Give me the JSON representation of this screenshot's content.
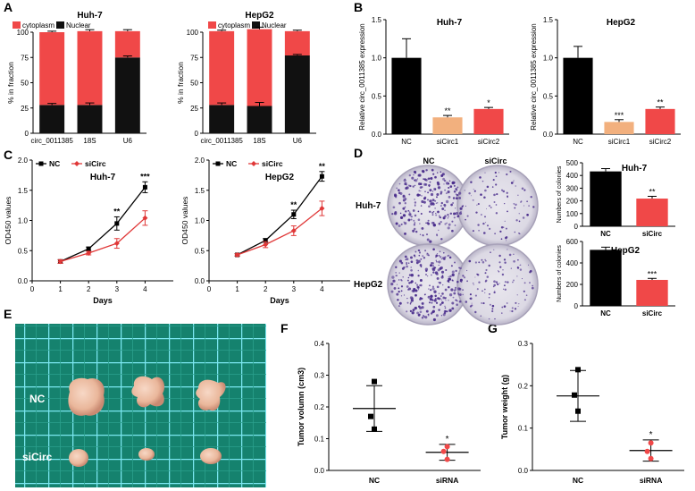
{
  "panel_letters": [
    "A",
    "B",
    "C",
    "D",
    "E",
    "F",
    "G"
  ],
  "colors": {
    "cytoplasm": "#f04848",
    "nuclear": "#111111",
    "nc_bar": "#000000",
    "sicirc1_bar": "#f2b07e",
    "sicirc2_bar": "#f04848",
    "sicirc_line": "#e03838",
    "crystal_violet": "#4a2d8c",
    "grid_bg": "#15826e",
    "grid_line": "#7ae6f0",
    "tumor": "#f0c2a8",
    "point_red": "#f04848"
  },
  "photo_labels": {
    "D": {
      "col1": "NC",
      "col2": "siCirc",
      "row1": "Huh-7",
      "row2": "HepG2"
    },
    "E": {
      "row1": "NC",
      "row2": "siCirc"
    }
  },
  "chart_data": [
    {
      "id": "A1",
      "type": "stacked-bar",
      "title": "Huh-7",
      "ylabel": "% in fraction",
      "ylim": [
        0,
        100
      ],
      "yticks": [
        0,
        25,
        50,
        75,
        100
      ],
      "categories": [
        "circ_0011385",
        "18S",
        "U6"
      ],
      "legend": [
        "cytoplasm",
        "Nuclear"
      ],
      "series": [
        {
          "name": "Nuclear",
          "values": [
            28,
            28,
            75
          ],
          "errors": [
            1.5,
            2,
            1.5
          ]
        },
        {
          "name": "cytoplasm",
          "values": [
            72,
            73,
            26
          ],
          "errors": [
            1,
            1.5,
            1.5
          ]
        }
      ]
    },
    {
      "id": "A2",
      "type": "stacked-bar",
      "title": "HepG2",
      "ylabel": "% in fraction",
      "ylim": [
        0,
        100
      ],
      "yticks": [
        0,
        25,
        50,
        75,
        100
      ],
      "categories": [
        "circ_0011385",
        "18S",
        "U6"
      ],
      "legend": [
        "cytoplasm",
        "Nuclear"
      ],
      "series": [
        {
          "name": "Nuclear",
          "values": [
            28,
            27,
            77
          ],
          "errors": [
            2,
            3.5,
            1
          ]
        },
        {
          "name": "cytoplasm",
          "values": [
            73,
            76,
            24
          ],
          "errors": [
            1,
            2,
            1
          ]
        }
      ]
    },
    {
      "id": "B1",
      "type": "bar",
      "title": "Huh-7",
      "ylabel": "Relative circ_0011385 expression",
      "ylim": [
        0,
        1.5
      ],
      "yticks": [
        "0.0",
        "0.5",
        "1.0",
        "1.5"
      ],
      "categories": [
        "NC",
        "siCirc1",
        "siCirc2"
      ],
      "values": [
        1.0,
        0.22,
        0.33
      ],
      "errors": [
        0.25,
        0.025,
        0.02
      ],
      "significance": [
        "",
        "**",
        "*"
      ]
    },
    {
      "id": "B2",
      "type": "bar",
      "title": "HepG2",
      "ylabel": "Relative circ_0011385 expression",
      "ylim": [
        0,
        1.5
      ],
      "yticks": [
        "0.0",
        "0.5",
        "1.0",
        "1.5"
      ],
      "categories": [
        "NC",
        "siCirc1",
        "siCirc2"
      ],
      "values": [
        1.0,
        0.16,
        0.33
      ],
      "errors": [
        0.15,
        0.03,
        0.025
      ],
      "significance": [
        "",
        "***",
        "**"
      ]
    },
    {
      "id": "C1",
      "type": "line",
      "title": "Huh-7",
      "xlabel": "Days",
      "ylabel": "OD450 values",
      "xlim": [
        0,
        5
      ],
      "xticks": [
        0,
        1,
        2,
        3,
        4
      ],
      "ylim": [
        0,
        2.0
      ],
      "yticks": [
        "0.0",
        "0.5",
        "1.0",
        "1.5",
        "2.0"
      ],
      "x": [
        1,
        2,
        3,
        4
      ],
      "legend": [
        "NC",
        "siCirc"
      ],
      "series": [
        {
          "name": "NC",
          "values": [
            0.32,
            0.53,
            0.95,
            1.55
          ],
          "errors": [
            0.03,
            0.03,
            0.11,
            0.09
          ]
        },
        {
          "name": "siCirc",
          "values": [
            0.32,
            0.46,
            0.62,
            1.04
          ],
          "errors": [
            0.03,
            0.03,
            0.08,
            0.12
          ]
        }
      ],
      "significance": [
        "",
        "",
        "**",
        "***"
      ]
    },
    {
      "id": "C2",
      "type": "line",
      "title": "HepG2",
      "xlabel": "Days",
      "ylabel": "OD450 values",
      "xlim": [
        0,
        5
      ],
      "xticks": [
        0,
        1,
        2,
        3,
        4
      ],
      "ylim": [
        0,
        2.0
      ],
      "yticks": [
        "0.0",
        "0.5",
        "1.0",
        "1.5",
        "2.0"
      ],
      "x": [
        1,
        2,
        3,
        4
      ],
      "legend": [
        "NC",
        "siCirc"
      ],
      "series": [
        {
          "name": "NC",
          "values": [
            0.43,
            0.67,
            1.1,
            1.73
          ],
          "errors": [
            0.02,
            0.03,
            0.07,
            0.08
          ]
        },
        {
          "name": "siCirc",
          "values": [
            0.43,
            0.6,
            0.83,
            1.2
          ],
          "errors": [
            0.02,
            0.05,
            0.08,
            0.12
          ]
        }
      ],
      "significance": [
        "",
        "",
        "**",
        "**"
      ]
    },
    {
      "id": "D1",
      "type": "bar",
      "title": "Huh-7",
      "ylabel": "Numbers of colonies",
      "ylim": [
        0,
        500
      ],
      "yticks": [
        "0",
        "100",
        "200",
        "300",
        "400",
        "500"
      ],
      "categories": [
        "NC",
        "siCirc"
      ],
      "values": [
        432,
        218
      ],
      "errors": [
        22,
        18
      ],
      "significance": [
        "",
        "**"
      ]
    },
    {
      "id": "D2",
      "type": "bar",
      "title": "HepG2",
      "ylabel": "Numbers of colonies",
      "ylim": [
        0,
        600
      ],
      "yticks": [
        "0",
        "200",
        "400",
        "600"
      ],
      "categories": [
        "NC",
        "siCirc"
      ],
      "values": [
        522,
        242
      ],
      "errors": [
        25,
        14
      ],
      "significance": [
        "",
        "***"
      ]
    },
    {
      "id": "F",
      "type": "scatter",
      "title": "",
      "ylabel": "Tumor volumn (cm3)",
      "ylim": [
        0,
        0.4
      ],
      "yticks": [
        "0.0",
        "0.1",
        "0.2",
        "0.3",
        "0.4"
      ],
      "categories": [
        "NC",
        "siRNA"
      ],
      "points": [
        [
          0.28,
          0.17,
          0.13
        ],
        [
          0.075,
          0.06,
          0.035
        ]
      ],
      "means": [
        0.195,
        0.057
      ],
      "sd": [
        0.072,
        0.025
      ],
      "significance": [
        "",
        "*"
      ]
    },
    {
      "id": "G",
      "type": "scatter",
      "title": "",
      "ylabel": "Tumor weight (g)",
      "ylim": [
        0,
        0.3
      ],
      "yticks": [
        "0.0",
        "0.1",
        "0.2",
        "0.3"
      ],
      "categories": [
        "NC",
        "siRNA"
      ],
      "points": [
        [
          0.238,
          0.178,
          0.14
        ],
        [
          0.065,
          0.045,
          0.028
        ]
      ],
      "means": [
        0.176,
        0.047
      ],
      "sd": [
        0.06,
        0.025
      ],
      "significance": [
        "",
        "*"
      ]
    }
  ]
}
